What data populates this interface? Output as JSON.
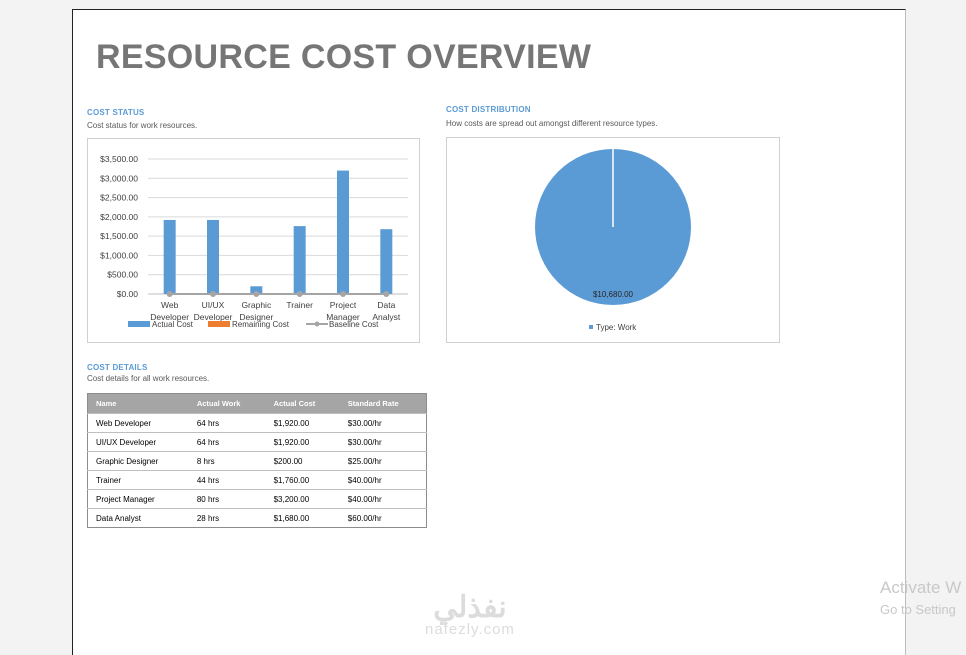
{
  "report": {
    "title": "RESOURCE COST OVERVIEW"
  },
  "cost_status": {
    "heading": "COST STATUS",
    "description": "Cost status for work resources."
  },
  "cost_distribution": {
    "heading": "COST DISTRIBUTION",
    "description": "How costs are spread out amongst different resource types."
  },
  "cost_details": {
    "heading": "COST DETAILS",
    "description": "Cost details for all work resources.",
    "columns": [
      "Name",
      "Actual Work",
      "Actual Cost",
      "Standard Rate"
    ],
    "rows": [
      [
        "Web Developer",
        "64 hrs",
        "$1,920.00",
        "$30.00/hr"
      ],
      [
        "UI/UX Developer",
        "64 hrs",
        "$1,920.00",
        "$30.00/hr"
      ],
      [
        "Graphic Designer",
        "8 hrs",
        "$200.00",
        "$25.00/hr"
      ],
      [
        "Trainer",
        "44 hrs",
        "$1,760.00",
        "$40.00/hr"
      ],
      [
        "Project Manager",
        "80 hrs",
        "$3,200.00",
        "$40.00/hr"
      ],
      [
        "Data Analyst",
        "28 hrs",
        "$1,680.00",
        "$60.00/hr"
      ]
    ]
  },
  "chart_data": [
    {
      "type": "bar",
      "categories": [
        [
          "Web",
          "Developer"
        ],
        [
          "UI/UX",
          "Developer"
        ],
        [
          "Graphic",
          "Designer"
        ],
        [
          "Trainer"
        ],
        [
          "Project",
          "Manager"
        ],
        [
          "Data",
          "Analyst"
        ]
      ],
      "series": [
        {
          "name": "Actual Cost",
          "values": [
            1920,
            1920,
            200,
            1760,
            3200,
            1680
          ],
          "color": "#5b9bd5"
        },
        {
          "name": "Remaining Cost",
          "values": [
            0,
            0,
            0,
            0,
            0,
            0
          ],
          "color": "#ed7d31"
        },
        {
          "name": "Baseline Cost",
          "values": [
            0,
            0,
            0,
            0,
            0,
            0
          ],
          "color": "#a5a5a5",
          "style": "line"
        }
      ],
      "ylim": [
        0,
        3500
      ],
      "yticks": [
        "$0.00",
        "$500.00",
        "$1,000.00",
        "$1,500.00",
        "$2,000.00",
        "$2,500.00",
        "$3,000.00",
        "$3,500.00"
      ],
      "grid": true,
      "legend": "bottom"
    },
    {
      "type": "pie",
      "slices": [
        {
          "name": "Type: Work",
          "value": 10680,
          "label": "$10,680.00",
          "color": "#5b9bd5"
        }
      ],
      "legend": "bottom"
    }
  ],
  "watermark": {
    "activate_line1": "Activate W",
    "activate_line2": "Go to Setting",
    "logo_arabic": "نفذلي",
    "logo_latin": "nafezly.com"
  }
}
